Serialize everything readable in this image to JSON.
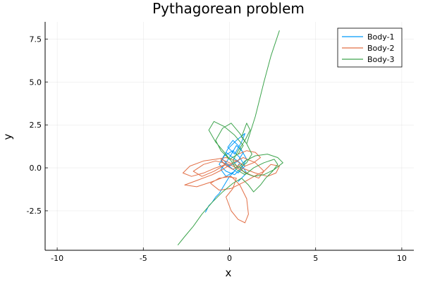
{
  "chart_data": {
    "type": "line",
    "title": "Pythagorean problem",
    "xlabel": "x",
    "ylabel": "y",
    "xlim": [
      -10.7,
      10.7
    ],
    "ylim": [
      -4.8,
      8.5
    ],
    "xticks": [
      -10,
      -5,
      0,
      5,
      10
    ],
    "xtick_labels": [
      "-10",
      "-5",
      "0",
      "5",
      "10"
    ],
    "yticks": [
      -2.5,
      0.0,
      2.5,
      5.0,
      7.5
    ],
    "ytick_labels": [
      "-2.5",
      "0.0",
      "2.5",
      "5.0",
      "7.5"
    ],
    "grid": true,
    "legend": "top-right",
    "series": [
      {
        "name": "Body-1",
        "color": "#009AFA",
        "x": [
          -1.4,
          -1.2,
          -1.0,
          -0.8,
          -0.6,
          -0.3,
          0.0,
          0.3,
          0.6,
          0.2,
          -0.2,
          -0.5,
          0.1,
          0.5,
          0.9,
          0.6,
          0.2,
          -0.3,
          -0.6,
          -0.2,
          0.3,
          0.7,
          1.0,
          0.6,
          0.2,
          -0.1,
          0.3,
          0.7,
          0.9,
          0.4,
          -0.1,
          -0.4,
          0.0,
          0.5,
          0.8,
          0.4,
          0.0,
          -0.5,
          -0.2,
          0.3,
          0.6,
          1.0,
          0.5
        ],
        "y": [
          -2.6,
          -2.2,
          -2.0,
          -1.7,
          -1.5,
          -1.0,
          -0.5,
          -0.2,
          0.3,
          0.6,
          0.9,
          0.4,
          0.0,
          -0.3,
          0.1,
          0.6,
          1.0,
          0.7,
          0.2,
          -0.2,
          -0.4,
          0.0,
          0.5,
          1.2,
          1.6,
          1.2,
          0.8,
          1.5,
          2.0,
          1.6,
          1.1,
          0.5,
          0.1,
          0.4,
          0.9,
          1.3,
          0.6,
          -0.1,
          -0.5,
          -0.2,
          0.3,
          -0.3,
          -0.8
        ]
      },
      {
        "name": "Body-2",
        "color": "#E26F46",
        "x": [
          0.5,
          1.0,
          1.5,
          1.8,
          1.4,
          0.9,
          0.4,
          -0.2,
          -0.8,
          -1.5,
          -2.3,
          -2.7,
          -2.2,
          -1.5,
          -0.8,
          -0.2,
          -0.9,
          -1.6,
          -2.1,
          -1.5,
          -0.8,
          0.0,
          0.6,
          1.2,
          1.7,
          2.0,
          1.5,
          0.8,
          0.2,
          -0.4,
          -1.0,
          -1.8,
          -2.6,
          -1.9,
          -1.0,
          -0.2,
          0.4,
          0.2,
          -0.2,
          0.1,
          0.5,
          0.9,
          1.1,
          1.0,
          0.6,
          0.1,
          -0.6,
          -1.1,
          -0.6,
          0.1,
          0.9,
          1.6,
          2.0,
          2.4,
          2.9,
          2.7,
          2.2,
          1.5,
          0.7,
          0.0,
          -0.5,
          -0.3,
          0.2,
          0.6
        ],
        "y": [
          0.8,
          1.0,
          0.9,
          0.6,
          0.3,
          0.1,
          0.4,
          0.6,
          0.5,
          0.4,
          0.1,
          -0.3,
          -0.5,
          -0.3,
          0.0,
          0.2,
          -0.2,
          -0.5,
          -0.2,
          0.2,
          0.4,
          0.2,
          -0.1,
          -0.4,
          -0.6,
          -0.2,
          0.3,
          0.6,
          0.3,
          -0.1,
          -0.4,
          -0.7,
          -1.0,
          -1.1,
          -0.8,
          -0.5,
          -0.6,
          -1.2,
          -1.7,
          -2.5,
          -3.0,
          -3.2,
          -2.7,
          -1.8,
          -1.0,
          -0.5,
          -0.6,
          -0.9,
          -1.3,
          -1.2,
          -0.8,
          -0.4,
          -0.2,
          0.2,
          0.1,
          -0.3,
          -0.5,
          -0.3,
          0.0,
          0.3,
          0.5,
          0.2,
          -0.1,
          0.2
        ]
      },
      {
        "name": "Body-3",
        "color": "#3DA44D",
        "x": [
          -3.0,
          -2.6,
          -2.1,
          -1.6,
          -1.0,
          -0.4,
          0.2,
          0.7,
          1.1,
          1.4,
          1.8,
          2.1,
          2.5,
          2.8,
          2.6,
          2.0,
          1.4,
          0.9,
          0.4,
          0.1,
          -0.3,
          -0.8,
          -1.2,
          -0.9,
          -0.3,
          0.3,
          0.8,
          0.5,
          0.0,
          -0.5,
          -0.8,
          -0.4,
          0.1,
          0.6,
          1.0,
          1.3,
          1.0,
          0.6,
          0.9,
          1.4,
          2.0,
          2.6,
          3.1,
          2.8,
          2.2,
          1.5,
          0.9,
          0.5,
          0.2,
          0.5,
          0.9,
          1.2,
          1.0,
          0.7,
          1.0,
          1.5,
          2.0,
          2.4,
          2.9
        ],
        "y": [
          -4.5,
          -4.0,
          -3.4,
          -2.7,
          -2.0,
          -1.4,
          -0.9,
          -0.6,
          -1.0,
          -1.4,
          -1.0,
          -0.6,
          -0.2,
          0.2,
          0.5,
          0.3,
          0.0,
          -0.4,
          -0.1,
          0.4,
          0.9,
          1.5,
          2.2,
          2.7,
          2.4,
          1.9,
          1.3,
          0.8,
          0.5,
          1.0,
          1.6,
          2.3,
          2.6,
          2.0,
          1.4,
          0.8,
          0.3,
          0.0,
          -0.3,
          -0.5,
          -0.4,
          -0.1,
          0.3,
          0.6,
          0.8,
          0.7,
          0.4,
          0.0,
          0.4,
          1.0,
          1.6,
          2.2,
          2.6,
          1.8,
          1.4,
          3.0,
          5.0,
          6.5,
          8.0
        ]
      }
    ]
  }
}
